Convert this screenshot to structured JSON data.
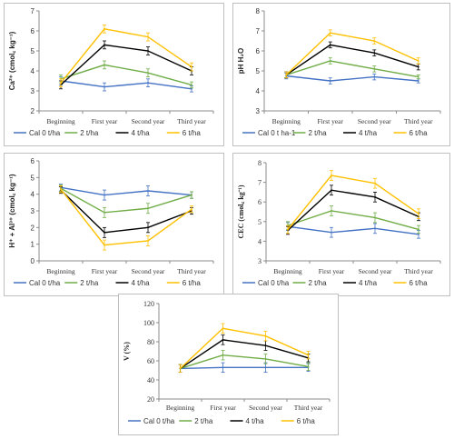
{
  "categories": [
    "Beginning",
    "First year",
    "Second year",
    "Third year"
  ],
  "chart_data": [
    {
      "type": "line",
      "title": "",
      "xlabel": "",
      "ylabel": "Ca²⁺ (cmol꜀ kg⁻¹)",
      "ylim": [
        2,
        7
      ],
      "yticks": [
        2,
        3,
        4,
        5,
        6,
        7
      ],
      "categories": [
        "Beginning",
        "First year",
        "Second year",
        "Third year"
      ],
      "series": [
        {
          "name": "Cal 0 t/ha",
          "color": "#4472c4",
          "values": [
            3.5,
            3.2,
            3.4,
            3.1
          ],
          "err": [
            0.2,
            0.2,
            0.2,
            0.15
          ]
        },
        {
          "name": "2 t/ha",
          "color": "#70ad47",
          "values": [
            3.6,
            4.3,
            3.9,
            3.3
          ],
          "err": [
            0.2,
            0.2,
            0.2,
            0.15
          ]
        },
        {
          "name": "4 t/ha",
          "color": "#000000",
          "values": [
            3.3,
            5.3,
            5.0,
            4.0
          ],
          "err": [
            0.2,
            0.2,
            0.2,
            0.2
          ]
        },
        {
          "name": "6 t/ha",
          "color": "#ffc000",
          "values": [
            3.4,
            6.1,
            5.7,
            4.2
          ],
          "err": [
            0.2,
            0.2,
            0.2,
            0.2
          ]
        }
      ]
    },
    {
      "type": "line",
      "title": "",
      "xlabel": "",
      "ylabel": "pH H₂O",
      "ylim": [
        3,
        8
      ],
      "yticks": [
        3,
        4,
        5,
        6,
        7,
        8
      ],
      "categories": [
        "Beginning",
        "First year",
        "Second year",
        "Third year"
      ],
      "series": [
        {
          "name": "Cal 0 t ha-1",
          "color": "#4472c4",
          "values": [
            4.75,
            4.5,
            4.7,
            4.5
          ],
          "err": [
            0.15,
            0.15,
            0.15,
            0.1
          ]
        },
        {
          "name": "2 t/ha",
          "color": "#70ad47",
          "values": [
            4.8,
            5.5,
            5.1,
            4.7
          ],
          "err": [
            0.15,
            0.15,
            0.15,
            0.1
          ]
        },
        {
          "name": "4 t/ha",
          "color": "#000000",
          "values": [
            4.8,
            6.3,
            5.9,
            5.2
          ],
          "err": [
            0.15,
            0.15,
            0.15,
            0.15
          ]
        },
        {
          "name": "6 t/ha",
          "color": "#ffc000",
          "values": [
            4.8,
            6.9,
            6.5,
            5.5
          ],
          "err": [
            0.15,
            0.15,
            0.15,
            0.15
          ]
        }
      ]
    },
    {
      "type": "line",
      "title": "",
      "xlabel": "",
      "ylabel": "H⁺ + Al³⁺ (cmol꜀ kg⁻¹)",
      "ylim": [
        0,
        6
      ],
      "yticks": [
        0,
        1,
        2,
        3,
        4,
        5,
        6
      ],
      "categories": [
        "Beginning",
        "First year",
        "Second year",
        "Third year"
      ],
      "series": [
        {
          "name": "Cal 0 t/ha",
          "color": "#4472c4",
          "values": [
            4.4,
            3.95,
            4.2,
            3.95
          ],
          "err": [
            0.2,
            0.3,
            0.3,
            0.2
          ]
        },
        {
          "name": "2 t/ha",
          "color": "#70ad47",
          "values": [
            4.35,
            2.9,
            3.15,
            3.95
          ],
          "err": [
            0.2,
            0.3,
            0.3,
            0.2
          ]
        },
        {
          "name": "4 t/ha",
          "color": "#000000",
          "values": [
            4.25,
            1.7,
            2.0,
            3.0
          ],
          "err": [
            0.2,
            0.3,
            0.3,
            0.2
          ]
        },
        {
          "name": "6 t/ha",
          "color": "#ffc000",
          "values": [
            4.3,
            0.95,
            1.2,
            3.1
          ],
          "err": [
            0.2,
            0.3,
            0.3,
            0.2
          ]
        }
      ]
    },
    {
      "type": "line",
      "title": "",
      "xlabel": "",
      "ylabel": "CEC (cmol꜀ kg⁻¹)",
      "ylim": [
        3,
        8
      ],
      "yticks": [
        3,
        4,
        5,
        6,
        7,
        8
      ],
      "categories": [
        "Beginning",
        "First year",
        "Second year",
        "Third year"
      ],
      "series": [
        {
          "name": "Cal 0 t/ha",
          "color": "#4472c4",
          "values": [
            4.75,
            4.45,
            4.65,
            4.35
          ],
          "err": [
            0.2,
            0.25,
            0.25,
            0.2
          ]
        },
        {
          "name": "2 t/ha",
          "color": "#70ad47",
          "values": [
            4.8,
            5.55,
            5.2,
            4.6
          ],
          "err": [
            0.2,
            0.25,
            0.25,
            0.2
          ]
        },
        {
          "name": "4 t/ha",
          "color": "#000000",
          "values": [
            4.55,
            6.6,
            6.25,
            5.25
          ],
          "err": [
            0.2,
            0.25,
            0.25,
            0.2
          ]
        },
        {
          "name": "6 t/ha",
          "color": "#ffc000",
          "values": [
            4.6,
            7.35,
            6.95,
            5.4
          ],
          "err": [
            0.2,
            0.25,
            0.25,
            0.25
          ]
        }
      ]
    },
    {
      "type": "line",
      "title": "",
      "xlabel": "",
      "ylabel": "V (%)",
      "ylim": [
        20,
        120
      ],
      "yticks": [
        20,
        40,
        60,
        80,
        100,
        120
      ],
      "categories": [
        "Beginning",
        "First year",
        "Second year",
        "Third year"
      ],
      "series": [
        {
          "name": "Cal 0 t/ha",
          "color": "#4472c4",
          "values": [
            52,
            53,
            53,
            53
          ],
          "err": [
            4,
            5,
            5,
            4
          ]
        },
        {
          "name": "2 t/ha",
          "color": "#70ad47",
          "values": [
            52,
            66,
            62,
            54
          ],
          "err": [
            4,
            5,
            5,
            4
          ]
        },
        {
          "name": "4 t/ha",
          "color": "#000000",
          "values": [
            52,
            82,
            76,
            63
          ],
          "err": [
            4,
            5,
            5,
            4
          ]
        },
        {
          "name": "6 t/ha",
          "color": "#ffc000",
          "values": [
            52,
            94,
            86,
            66
          ],
          "err": [
            4,
            5,
            5,
            4
          ]
        }
      ]
    }
  ]
}
